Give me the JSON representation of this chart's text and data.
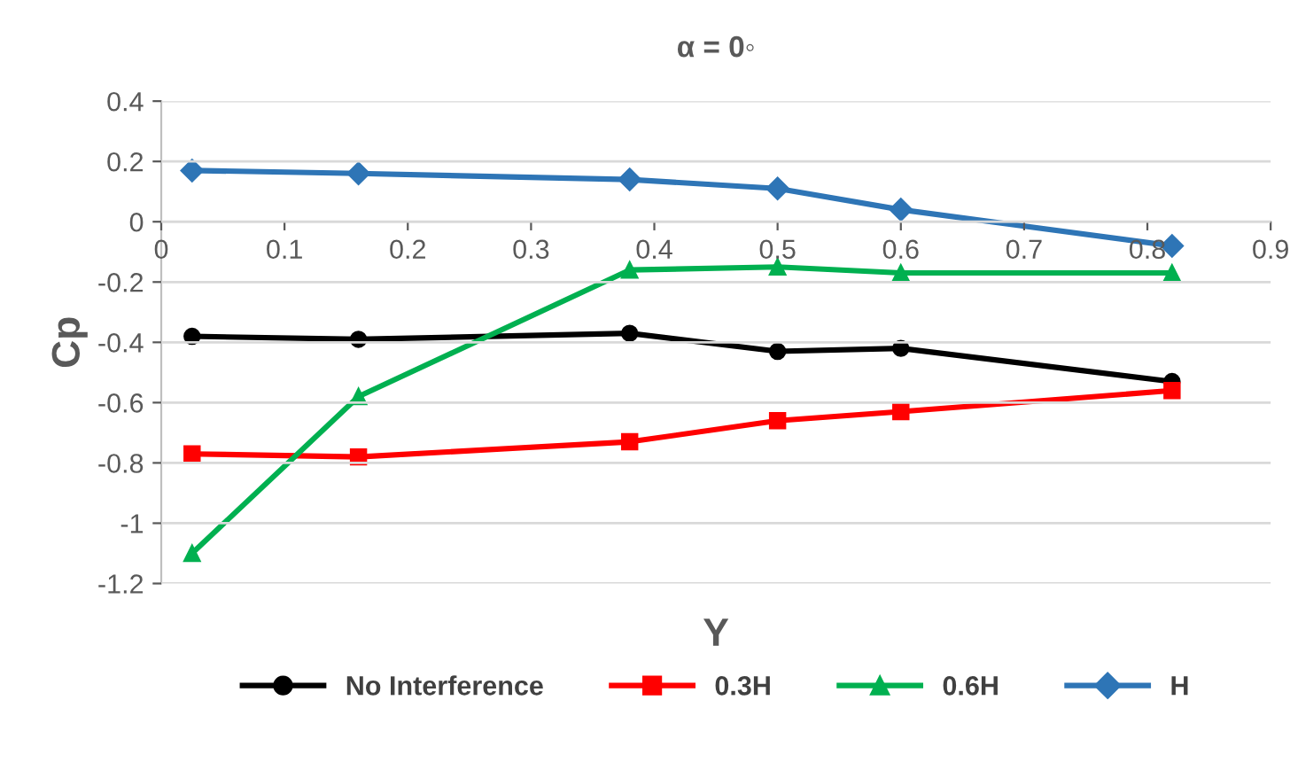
{
  "chart_data": {
    "type": "line",
    "title": "α = 0◦",
    "xlabel": "Y",
    "ylabel": "Cp",
    "xlim": [
      0,
      0.9
    ],
    "xticks": [
      0,
      0.1,
      0.2,
      0.3,
      0.4,
      0.5,
      0.6,
      0.7,
      0.8,
      0.9
    ],
    "ylim": [
      -1.2,
      0.4
    ],
    "yticks": [
      0.4,
      0.2,
      0,
      {
        "value": -0.2,
        "label": "-0.2"
      },
      {
        "value": -0.4,
        "label": "-0.4"
      },
      {
        "value": -0.6,
        "label": "-0.6"
      },
      {
        "value": -0.8,
        "label": "-0.8"
      },
      {
        "value": -1,
        "label": "-1"
      },
      {
        "value": -1.2,
        "label": "-1.2"
      }
    ],
    "grid": "y",
    "legend": "bottom",
    "line_style": "solid",
    "x": [
      0.025,
      0.16,
      0.38,
      0.5,
      0.6,
      0.82
    ],
    "series": [
      {
        "name": "No Interference",
        "color": "#000000",
        "marker": "circle",
        "values": [
          -0.38,
          -0.39,
          -0.37,
          -0.43,
          -0.42,
          -0.53
        ]
      },
      {
        "name": "0.3H",
        "color": "#ff0000",
        "marker": "square",
        "values": [
          -0.77,
          -0.78,
          -0.73,
          -0.66,
          -0.63,
          -0.56
        ]
      },
      {
        "name": "0.6H",
        "color": "#00b050",
        "marker": "triangle",
        "values": [
          -1.1,
          -0.58,
          -0.16,
          -0.15,
          -0.17,
          -0.17
        ]
      },
      {
        "name": "H",
        "color": "#2e75b6",
        "marker": "diamond",
        "values": [
          0.17,
          0.16,
          0.14,
          0.11,
          0.04,
          -0.08
        ]
      }
    ]
  }
}
